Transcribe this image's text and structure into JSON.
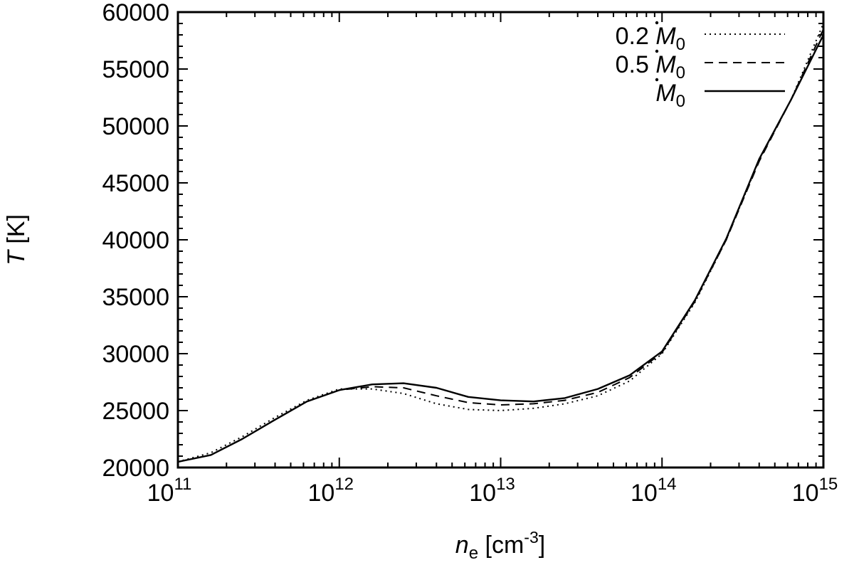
{
  "chart_data": {
    "type": "line",
    "title": "",
    "xlabel": {
      "italic": "n",
      "subscript": "e",
      "rest": " [cm",
      "superscript": "-3",
      "close": "]"
    },
    "ylabel": {
      "italic": "T",
      "rest": " [K]"
    },
    "xscale": "log",
    "xlim": [
      100000000000.0,
      1000000000000000.0
    ],
    "ylim": [
      20000,
      60000
    ],
    "yticks": [
      "20000",
      "25000",
      "30000",
      "35000",
      "40000",
      "45000",
      "50000",
      "55000",
      "60000"
    ],
    "xticks": [
      {
        "base": "10",
        "exp": "11"
      },
      {
        "base": "10",
        "exp": "12"
      },
      {
        "base": "10",
        "exp": "13"
      },
      {
        "base": "10",
        "exp": "14"
      },
      {
        "base": "10",
        "exp": "15"
      }
    ],
    "grid": false,
    "legend_position": "top-right",
    "series": [
      {
        "name": "0.2 Ṁ0",
        "label_prefix": "0.2 ",
        "label_symbol": "M",
        "label_sub": "0",
        "style": "dotted",
        "x": [
          100000000000.0,
          160000000000.0,
          250000000000.0,
          400000000000.0,
          630000000000.0,
          1000000000000.0,
          1600000000000.0,
          2500000000000.0,
          4000000000000.0,
          6300000000000.0,
          10000000000000.0,
          16000000000000.0,
          25000000000000.0,
          40000000000000.0,
          63000000000000.0,
          100000000000000.0,
          160000000000000.0,
          250000000000000.0,
          400000000000000.0,
          630000000000000.0,
          1000000000000000.0
        ],
        "y": [
          20500,
          21300,
          22700,
          24400,
          25900,
          26900,
          26900,
          26500,
          25600,
          25100,
          25000,
          25200,
          25600,
          26300,
          27600,
          30000,
          34500,
          40000,
          47000,
          52300,
          59000
        ]
      },
      {
        "name": "0.5 Ṁ0",
        "label_prefix": "0.5 ",
        "label_symbol": "M",
        "label_sub": "0",
        "style": "dashed",
        "x": [
          100000000000.0,
          160000000000.0,
          250000000000.0,
          400000000000.0,
          630000000000.0,
          1000000000000.0,
          1600000000000.0,
          2500000000000.0,
          4000000000000.0,
          6300000000000.0,
          10000000000000.0,
          16000000000000.0,
          25000000000000.0,
          40000000000000.0,
          63000000000000.0,
          100000000000000.0,
          160000000000000.0,
          250000000000000.0,
          400000000000000.0,
          630000000000000.0,
          1000000000000000.0
        ],
        "y": [
          20500,
          21100,
          22500,
          24200,
          25800,
          26800,
          27100,
          27000,
          26300,
          25700,
          25500,
          25600,
          25900,
          26600,
          27900,
          30100,
          34600,
          40000,
          46900,
          52300,
          58500
        ]
      },
      {
        "name": "Ṁ0",
        "label_prefix": "",
        "label_symbol": "M",
        "label_sub": "0",
        "style": "solid",
        "x": [
          100000000000.0,
          160000000000.0,
          250000000000.0,
          400000000000.0,
          630000000000.0,
          1000000000000.0,
          1600000000000.0,
          2500000000000.0,
          4000000000000.0,
          6300000000000.0,
          10000000000000.0,
          16000000000000.0,
          25000000000000.0,
          40000000000000.0,
          63000000000000.0,
          100000000000000.0,
          160000000000000.0,
          250000000000000.0,
          400000000000000.0,
          630000000000000.0,
          1000000000000000.0
        ],
        "y": [
          20500,
          21100,
          22500,
          24200,
          25800,
          26800,
          27300,
          27400,
          27000,
          26200,
          25900,
          25800,
          26100,
          26900,
          28100,
          30200,
          34700,
          40100,
          47100,
          52300,
          58000
        ]
      }
    ]
  }
}
